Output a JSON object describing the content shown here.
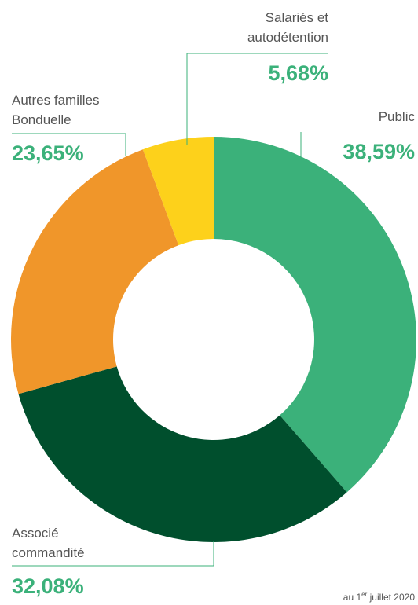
{
  "chart_data": {
    "type": "donut",
    "categories": [
      "Public",
      "Associé commandité",
      "Autres familles Bonduelle",
      "Salariés et autodétention"
    ],
    "values": [
      38.59,
      32.08,
      23.65,
      5.68
    ],
    "value_labels": [
      "38,59%",
      "32,08%",
      "23,65%",
      "5,68%"
    ],
    "colors": [
      "#3bb17a",
      "#004f2d",
      "#f0962a",
      "#fdd11b"
    ],
    "footnote": {
      "prefix": "au 1",
      "sup": "er",
      "suffix": " juillet 2020"
    }
  }
}
